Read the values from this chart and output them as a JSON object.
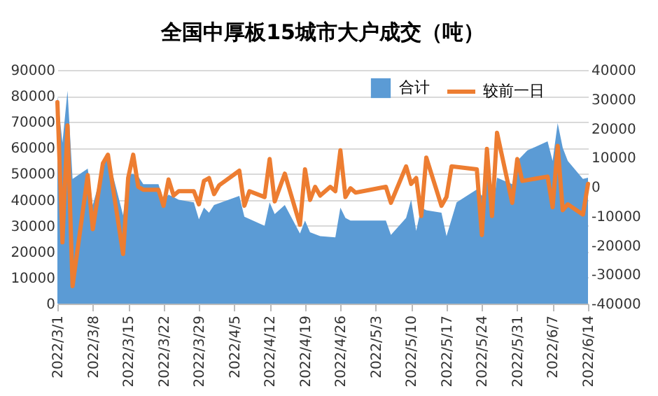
{
  "chart_data": {
    "type": "area",
    "title": "全国中厚板15城市大户成交（吨）",
    "legend": "top right",
    "grid": "y",
    "xlim": [
      "2022-03-01",
      "2022-06-14"
    ],
    "xticks": [
      {
        "value": "2022-03-01",
        "label": "2022/3/1"
      },
      {
        "value": "2022-03-08",
        "label": "2022/3/8"
      },
      {
        "value": "2022-03-15",
        "label": "2022/3/15"
      },
      {
        "value": "2022-03-22",
        "label": "2022/3/22"
      },
      {
        "value": "2022-03-29",
        "label": "2022/3/29"
      },
      {
        "value": "2022-04-05",
        "label": "2022/4/5"
      },
      {
        "value": "2022-04-12",
        "label": "2022/4/12"
      },
      {
        "value": "2022-04-19",
        "label": "2022/4/19"
      },
      {
        "value": "2022-04-26",
        "label": "2022/4/26"
      },
      {
        "value": "2022-05-03",
        "label": "2022/5/3"
      },
      {
        "value": "2022-05-10",
        "label": "2022/5/10"
      },
      {
        "value": "2022-05-17",
        "label": "2022/5/17"
      },
      {
        "value": "2022-05-24",
        "label": "2022/5/24"
      },
      {
        "value": "2022-05-31",
        "label": "2022/5/31"
      },
      {
        "value": "2022-06-07",
        "label": "2022/6/7"
      },
      {
        "value": "2022-06-14",
        "label": "2022/6/14"
      }
    ],
    "ylim": [
      0,
      90000
    ],
    "yticks": [
      0,
      10000,
      20000,
      30000,
      40000,
      50000,
      60000,
      70000,
      80000,
      90000
    ],
    "y2lim": [
      -40000,
      40000
    ],
    "y2ticks": [
      -40000,
      -30000,
      -20000,
      -10000,
      0,
      10000,
      20000,
      30000,
      40000
    ],
    "series": [
      {
        "name": "合计",
        "color": "#5b9bd5",
        "x": [
          "2022-03-01",
          "2022-03-02",
          "2022-03-03",
          "2022-03-04",
          "2022-03-07",
          "2022-03-08",
          "2022-03-10",
          "2022-03-11",
          "2022-03-14",
          "2022-03-15",
          "2022-03-16",
          "2022-03-17",
          "2022-03-18",
          "2022-03-21",
          "2022-03-22",
          "2022-03-23",
          "2022-03-24",
          "2022-03-25",
          "2022-03-28",
          "2022-03-29",
          "2022-03-30",
          "2022-03-31",
          "2022-04-01",
          "2022-04-06",
          "2022-04-07",
          "2022-04-11",
          "2022-04-12",
          "2022-04-13",
          "2022-04-15",
          "2022-04-18",
          "2022-04-19",
          "2022-04-20",
          "2022-04-22",
          "2022-04-25",
          "2022-04-26",
          "2022-04-27",
          "2022-04-28",
          "2022-05-05",
          "2022-05-06",
          "2022-05-09",
          "2022-05-10",
          "2022-05-11",
          "2022-05-12",
          "2022-05-13",
          "2022-05-16",
          "2022-05-17",
          "2022-05-19",
          "2022-05-23",
          "2022-05-24",
          "2022-05-25",
          "2022-05-26",
          "2022-05-27",
          "2022-05-30",
          "2022-05-31",
          "2022-06-02",
          "2022-06-06",
          "2022-06-07",
          "2022-06-08",
          "2022-06-09",
          "2022-06-10",
          "2022-06-13",
          "2022-06-14"
        ],
        "values": [
          80000,
          62000,
          82000,
          48000,
          52000,
          38000,
          52000,
          57000,
          34000,
          50000,
          50000,
          49000,
          46000,
          46000,
          40000,
          42000,
          41000,
          40000,
          39000,
          32500,
          37000,
          35000,
          38000,
          41500,
          33500,
          30000,
          39000,
          34500,
          38000,
          27000,
          32000,
          27500,
          26000,
          25500,
          37000,
          33000,
          32000,
          32000,
          26500,
          33000,
          40000,
          28000,
          37000,
          36000,
          35000,
          26000,
          39000,
          44000,
          41500,
          49500,
          33500,
          48500,
          46000,
          55000,
          59000,
          62500,
          55000,
          69500,
          60000,
          55000,
          48000,
          48500
        ]
      },
      {
        "name": "较前一日",
        "type": "line",
        "axis": "y2",
        "color": "#ed7d31",
        "x": [
          "2022-03-01",
          "2022-03-02",
          "2022-03-03",
          "2022-03-04",
          "2022-03-07",
          "2022-03-08",
          "2022-03-10",
          "2022-03-11",
          "2022-03-14",
          "2022-03-15",
          "2022-03-16",
          "2022-03-17",
          "2022-03-18",
          "2022-03-21",
          "2022-03-22",
          "2022-03-23",
          "2022-03-24",
          "2022-03-25",
          "2022-03-28",
          "2022-03-29",
          "2022-03-30",
          "2022-03-31",
          "2022-04-01",
          "2022-04-02",
          "2022-04-06",
          "2022-04-07",
          "2022-04-08",
          "2022-04-11",
          "2022-04-12",
          "2022-04-13",
          "2022-04-15",
          "2022-04-18",
          "2022-04-19",
          "2022-04-20",
          "2022-04-21",
          "2022-04-22",
          "2022-04-24",
          "2022-04-25",
          "2022-04-26",
          "2022-04-27",
          "2022-04-28",
          "2022-04-29",
          "2022-05-05",
          "2022-05-06",
          "2022-05-09",
          "2022-05-10",
          "2022-05-11",
          "2022-05-12",
          "2022-05-13",
          "2022-05-16",
          "2022-05-17",
          "2022-05-18",
          "2022-05-23",
          "2022-05-24",
          "2022-05-25",
          "2022-05-26",
          "2022-05-27",
          "2022-05-30",
          "2022-05-31",
          "2022-06-01",
          "2022-06-06",
          "2022-06-07",
          "2022-06-08",
          "2022-06-09",
          "2022-06-10",
          "2022-06-13",
          "2022-06-14"
        ],
        "values": [
          29000,
          -19000,
          21000,
          -34000,
          4000,
          -14500,
          8000,
          11000,
          -23000,
          3000,
          11000,
          0,
          -1000,
          -1000,
          -6500,
          2500,
          -3000,
          -1500,
          -1500,
          -6000,
          2000,
          3000,
          -2500,
          500,
          5500,
          -6500,
          -1500,
          -3500,
          9500,
          -5000,
          4500,
          -13000,
          6000,
          -4500,
          0,
          -3000,
          0,
          -1500,
          12500,
          -3500,
          -500,
          -2000,
          0,
          -5500,
          7000,
          1000,
          3000,
          -10000,
          10000,
          -6500,
          -3500,
          7000,
          6000,
          -16500,
          13000,
          -10000,
          18500,
          -5500,
          9500,
          2000,
          3500,
          -7000,
          14000,
          -8000,
          -6000,
          -9500,
          1000
        ]
      }
    ]
  }
}
